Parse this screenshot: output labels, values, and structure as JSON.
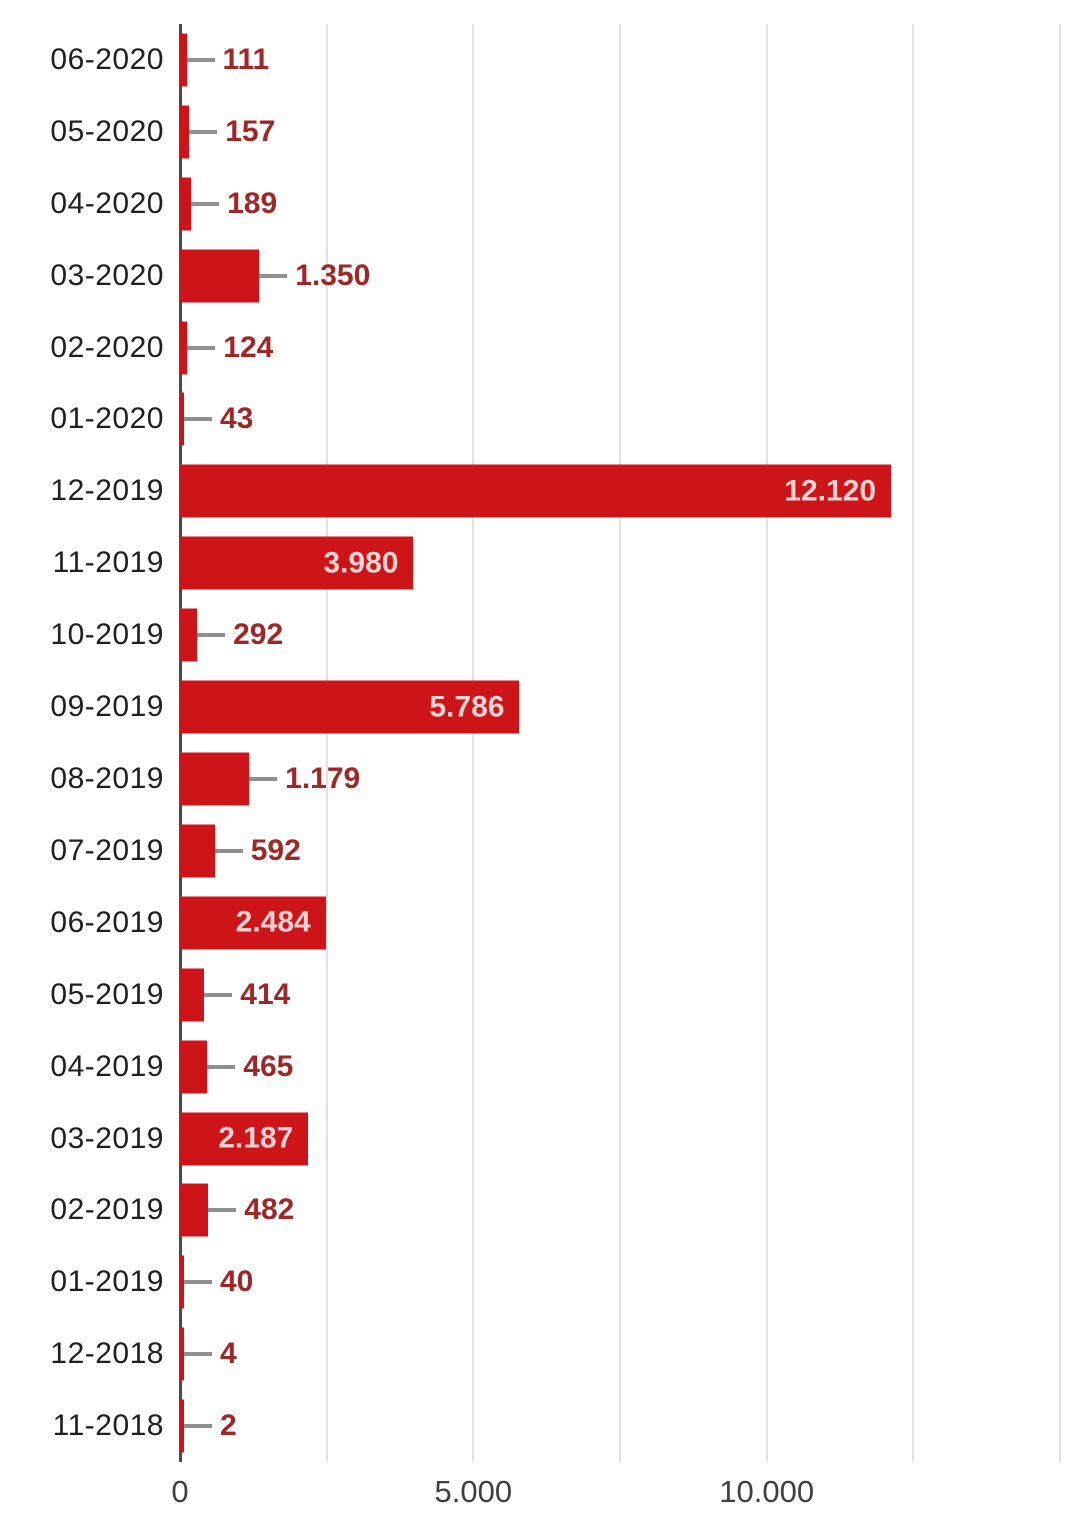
{
  "chart_data": {
    "type": "bar",
    "orientation": "horizontal",
    "title": "",
    "xlabel": "",
    "ylabel": "",
    "categories": [
      "06-2020",
      "05-2020",
      "04-2020",
      "03-2020",
      "02-2020",
      "01-2020",
      "12-2019",
      "11-2019",
      "10-2019",
      "09-2019",
      "08-2019",
      "07-2019",
      "06-2019",
      "05-2019",
      "04-2019",
      "03-2019",
      "02-2019",
      "01-2019",
      "12-2018",
      "11-2018"
    ],
    "values": [
      111,
      157,
      189,
      1350,
      124,
      43,
      12120,
      3980,
      292,
      5786,
      1179,
      592,
      2484,
      414,
      465,
      2187,
      482,
      40,
      4,
      2
    ],
    "value_labels": [
      "111",
      "157",
      "189",
      "1.350",
      "124",
      "43",
      "12.120",
      "3.980",
      "292",
      "5.786",
      "1.179",
      "592",
      "2.484",
      "414",
      "465",
      "2.187",
      "482",
      "40",
      "4",
      "2"
    ],
    "xlim": [
      0,
      15000
    ],
    "x_ticks": [
      {
        "value": 0,
        "label": "0"
      },
      {
        "value": 5000,
        "label": "5.000"
      },
      {
        "value": 10000,
        "label": "10.000"
      }
    ],
    "gridline_step": 2500,
    "grid": true,
    "legend": "none",
    "inside_label_threshold": 2000
  },
  "colors": {
    "background": "#ffffff",
    "bar": "#cd1519",
    "value_label_inside": "#f2d2d2",
    "value_label_outside": "#9e2828",
    "category_label": "#202020",
    "axis_label": "#3f3f3f",
    "gridline": "#e2e2e2",
    "baseline": "#4a4a4a",
    "stem": "#909090"
  }
}
